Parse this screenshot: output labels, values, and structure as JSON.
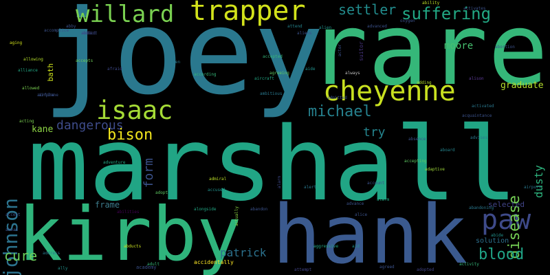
{
  "words": [
    {
      "text": "joey",
      "color": "#2a788e"
    },
    {
      "text": "rare",
      "color": "#35b779"
    },
    {
      "text": "marshall",
      "color": "#21a585"
    },
    {
      "text": "hank",
      "color": "#3b5a8f"
    },
    {
      "text": "kirby",
      "color": "#2fb47c"
    },
    {
      "text": "trapper",
      "color": "#d2e21b"
    },
    {
      "text": "willard",
      "color": "#7ad151"
    },
    {
      "text": "cheyenne",
      "color": "#c8e020"
    },
    {
      "text": "isaac",
      "color": "#a5db36"
    },
    {
      "text": "johnson",
      "color": "#2c738e"
    },
    {
      "text": "paw",
      "color": "#3e4a89"
    },
    {
      "text": "suffering",
      "color": "#22a884"
    },
    {
      "text": "settler",
      "color": "#228c8d"
    },
    {
      "text": "michael",
      "color": "#26818e"
    },
    {
      "text": "dangerous",
      "color": "#3e4c8a"
    },
    {
      "text": "disease",
      "color": "#75d054"
    },
    {
      "text": "blood",
      "color": "#20a386"
    },
    {
      "text": "form",
      "color": "#3b528b"
    },
    {
      "text": "bison",
      "color": "#f1e51d"
    },
    {
      "text": "try",
      "color": "#25858e"
    },
    {
      "text": "dusty",
      "color": "#2db27d"
    },
    {
      "text": "cure",
      "color": "#6ccd5a"
    },
    {
      "text": "patrick",
      "color": "#2c728e"
    },
    {
      "text": "moore",
      "color": "#46c06f"
    },
    {
      "text": "graduate",
      "color": "#b5de2b"
    },
    {
      "text": "frame",
      "color": "#3c7a8a"
    },
    {
      "text": "kane",
      "color": "#8ed645"
    },
    {
      "text": "selected",
      "color": "#414487"
    },
    {
      "text": "solution",
      "color": "#2d708e"
    },
    {
      "text": "bath",
      "color": "#cde11d"
    },
    {
      "text": "always",
      "color": "#c0c0c0"
    },
    {
      "text": "suitor",
      "color": "#46337e"
    },
    {
      "text": "alison",
      "color": "#5e3c99"
    },
    {
      "text": "accidentally",
      "color": "#fde725"
    },
    {
      "text": "aggressive",
      "color": "#22a884"
    },
    {
      "text": "activated",
      "color": "#2a788e"
    },
    {
      "text": "adaptive",
      "color": "#a0da39"
    },
    {
      "text": "accepted",
      "color": "#35b779"
    },
    {
      "text": "advance",
      "color": "#3b528b"
    },
    {
      "text": "academy",
      "color": "#3b528b"
    },
    {
      "text": "abducts",
      "color": "#c8e020"
    },
    {
      "text": "aircraft",
      "color": "#22a884"
    },
    {
      "text": "advises",
      "color": "#2a788e"
    },
    {
      "text": "ambitious",
      "color": "#2a788e"
    },
    {
      "text": "agreeing",
      "color": "#5ec962"
    },
    {
      "text": "adding",
      "color": "#b5de2b"
    },
    {
      "text": "abandoning",
      "color": "#2a788e"
    },
    {
      "text": "aging",
      "color": "#d2e21b"
    },
    {
      "text": "allowing",
      "color": "#b5de2b"
    },
    {
      "text": "according",
      "color": "#35b779"
    },
    {
      "text": "acquaintance",
      "color": "#3b528b"
    },
    {
      "text": "attend",
      "color": "#25858e"
    },
    {
      "text": "advanced",
      "color": "#3b528b"
    },
    {
      "text": "alien",
      "color": "#21918c"
    },
    {
      "text": "afraid",
      "color": "#3e4989"
    },
    {
      "text": "agreed",
      "color": "#3b528b"
    },
    {
      "text": "abortion",
      "color": "#3b528b"
    },
    {
      "text": "accused",
      "color": "#21918c"
    },
    {
      "text": "admiral",
      "color": "#bddf26"
    },
    {
      "text": "actually",
      "color": "#8fd744"
    },
    {
      "text": "abandon",
      "color": "#3b528b"
    },
    {
      "text": "activity",
      "color": "#35b779"
    },
    {
      "text": "ability",
      "color": "#bddf26"
    },
    {
      "text": "oxygen",
      "color": "#3b528b"
    },
    {
      "text": "airport",
      "color": "#2a788e"
    },
    {
      "text": "ahead",
      "color": "#3b528b"
    },
    {
      "text": "address",
      "color": "#2a788e"
    },
    {
      "text": "attempt",
      "color": "#414487"
    },
    {
      "text": "aboard",
      "color": "#25858e"
    },
    {
      "text": "absence",
      "color": "#3b528b"
    },
    {
      "text": "alongside",
      "color": "#22a884"
    },
    {
      "text": "abide",
      "color": "#21918c"
    },
    {
      "text": "admitted",
      "color": "#3b528b"
    },
    {
      "text": "actor",
      "color": "#3b528b"
    },
    {
      "text": "activates",
      "color": "#3b528b"
    },
    {
      "text": "airline",
      "color": "#3b528b"
    },
    {
      "text": "account",
      "color": "#3b528b"
    },
    {
      "text": "accepts",
      "color": "#6ece58"
    },
    {
      "text": "alien",
      "color": "#2a788e"
    },
    {
      "text": "alice",
      "color": "#3b528b"
    },
    {
      "text": "adventure",
      "color": "#22a884"
    },
    {
      "text": "adopted",
      "color": "#414487"
    },
    {
      "text": "aliens",
      "color": "#3b528b"
    },
    {
      "text": "alarm",
      "color": "#22a884"
    },
    {
      "text": "accepting",
      "color": "#5ec962"
    },
    {
      "text": "aide",
      "color": "#21918c"
    },
    {
      "text": "addict",
      "color": "#3b528b"
    },
    {
      "text": "airplane",
      "color": "#3b528b"
    },
    {
      "text": "allowed",
      "color": "#7ad151"
    },
    {
      "text": "alliance",
      "color": "#22a884"
    },
    {
      "text": "abby",
      "color": "#3b528b"
    },
    {
      "text": "adopt",
      "color": "#5ec962"
    },
    {
      "text": "alert",
      "color": "#2a788e"
    },
    {
      "text": "abduct",
      "color": "#414487"
    },
    {
      "text": "acting",
      "color": "#7ad151"
    },
    {
      "text": "accomplice",
      "color": "#3b528b"
    },
    {
      "text": "alarm",
      "color": "#3e4989"
    },
    {
      "text": "abilities",
      "color": "#440154"
    },
    {
      "text": "aid",
      "color": "#21918c"
    },
    {
      "text": "accept",
      "color": "#3b528b"
    },
    {
      "text": "ally",
      "color": "#21918c"
    },
    {
      "text": "adult",
      "color": "#35b779"
    }
  ]
}
